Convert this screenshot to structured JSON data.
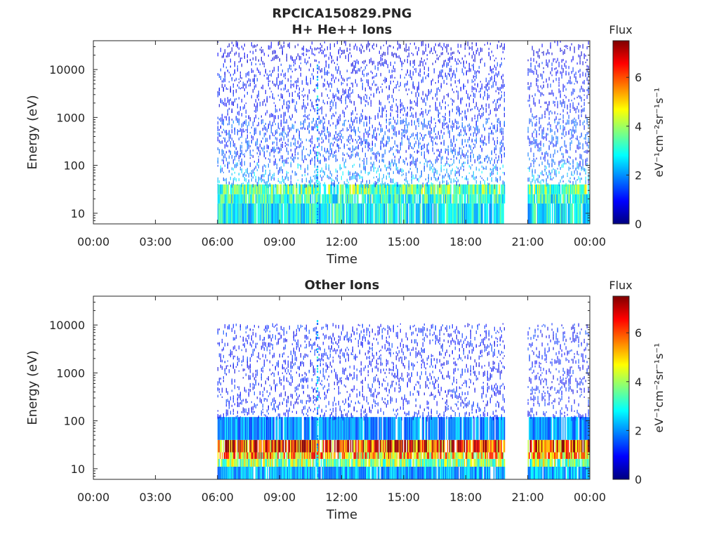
{
  "figure": {
    "title_line1": "RPCICA150829.PNG"
  },
  "colormap": {
    "stops": [
      "#00007f",
      "#0000ff",
      "#007fff",
      "#00ffff",
      "#7fff7f",
      "#ffff00",
      "#ff7f00",
      "#ff0000",
      "#7f0000"
    ]
  },
  "chart_data": [
    {
      "type": "heatmap",
      "title": "H+ He++ Ions",
      "xlabel": "Time",
      "ylabel": "Energy (eV)",
      "xticks": [
        "00:00",
        "03:00",
        "06:00",
        "09:00",
        "12:00",
        "15:00",
        "18:00",
        "21:00",
        "00:00"
      ],
      "xlim_hours": [
        0,
        24
      ],
      "yscale": "log",
      "ylim": [
        6,
        40000
      ],
      "yticks": [
        "10",
        "100",
        "1000",
        "10000"
      ],
      "data_intervals_hours": [
        [
          6.0,
          19.9
        ],
        [
          21.0,
          24.0
        ]
      ],
      "spike_hour": 10.8,
      "colorbar": {
        "label_top": "Flux",
        "units": "eV⁻¹cm⁻²sr⁻¹s⁻¹",
        "range": [
          0,
          7.5
        ],
        "ticks": [
          "0",
          "2",
          "4",
          "6"
        ]
      },
      "bands": [
        {
          "e_min": 6,
          "e_max": 16,
          "flux": 2.8
        },
        {
          "e_min": 16,
          "e_max": 25,
          "flux": 3.1
        },
        {
          "e_min": 25,
          "e_max": 40,
          "flux": 3.6
        },
        {
          "e_min": 40,
          "e_max": 120,
          "flux": 1.9
        },
        {
          "e_min": 120,
          "e_max": 1000,
          "flux": 1.3
        },
        {
          "e_min": 1000,
          "e_max": 15000,
          "flux": 1.0
        },
        {
          "e_min": 15000,
          "e_max": 40000,
          "flux": 0.7
        }
      ]
    },
    {
      "type": "heatmap",
      "title": "Other Ions",
      "xlabel": "Time",
      "ylabel": "Energy (eV)",
      "xticks": [
        "00:00",
        "03:00",
        "06:00",
        "09:00",
        "12:00",
        "15:00",
        "18:00",
        "21:00",
        "00:00"
      ],
      "xlim_hours": [
        0,
        24
      ],
      "yscale": "log",
      "ylim": [
        6,
        40000
      ],
      "yticks": [
        "10",
        "100",
        "1000",
        "10000"
      ],
      "data_intervals_hours": [
        [
          6.0,
          19.9
        ],
        [
          21.0,
          24.0
        ]
      ],
      "spike_hour": 10.8,
      "colorbar": {
        "label_top": "Flux",
        "units": "eV⁻¹cm⁻²sr⁻¹s⁻¹",
        "range": [
          0,
          7.5
        ],
        "ticks": [
          "0",
          "2",
          "4",
          "6"
        ]
      },
      "bands": [
        {
          "e_min": 6,
          "e_max": 11,
          "flux": 2.2
        },
        {
          "e_min": 11,
          "e_max": 16,
          "flux": 3.8
        },
        {
          "e_min": 16,
          "e_max": 22,
          "flux": 5.2
        },
        {
          "e_min": 22,
          "e_max": 40,
          "flux": 6.3
        },
        {
          "e_min": 40,
          "e_max": 120,
          "flux": 2.0
        },
        {
          "e_min": 120,
          "e_max": 11000,
          "flux": 1.0
        }
      ]
    }
  ]
}
